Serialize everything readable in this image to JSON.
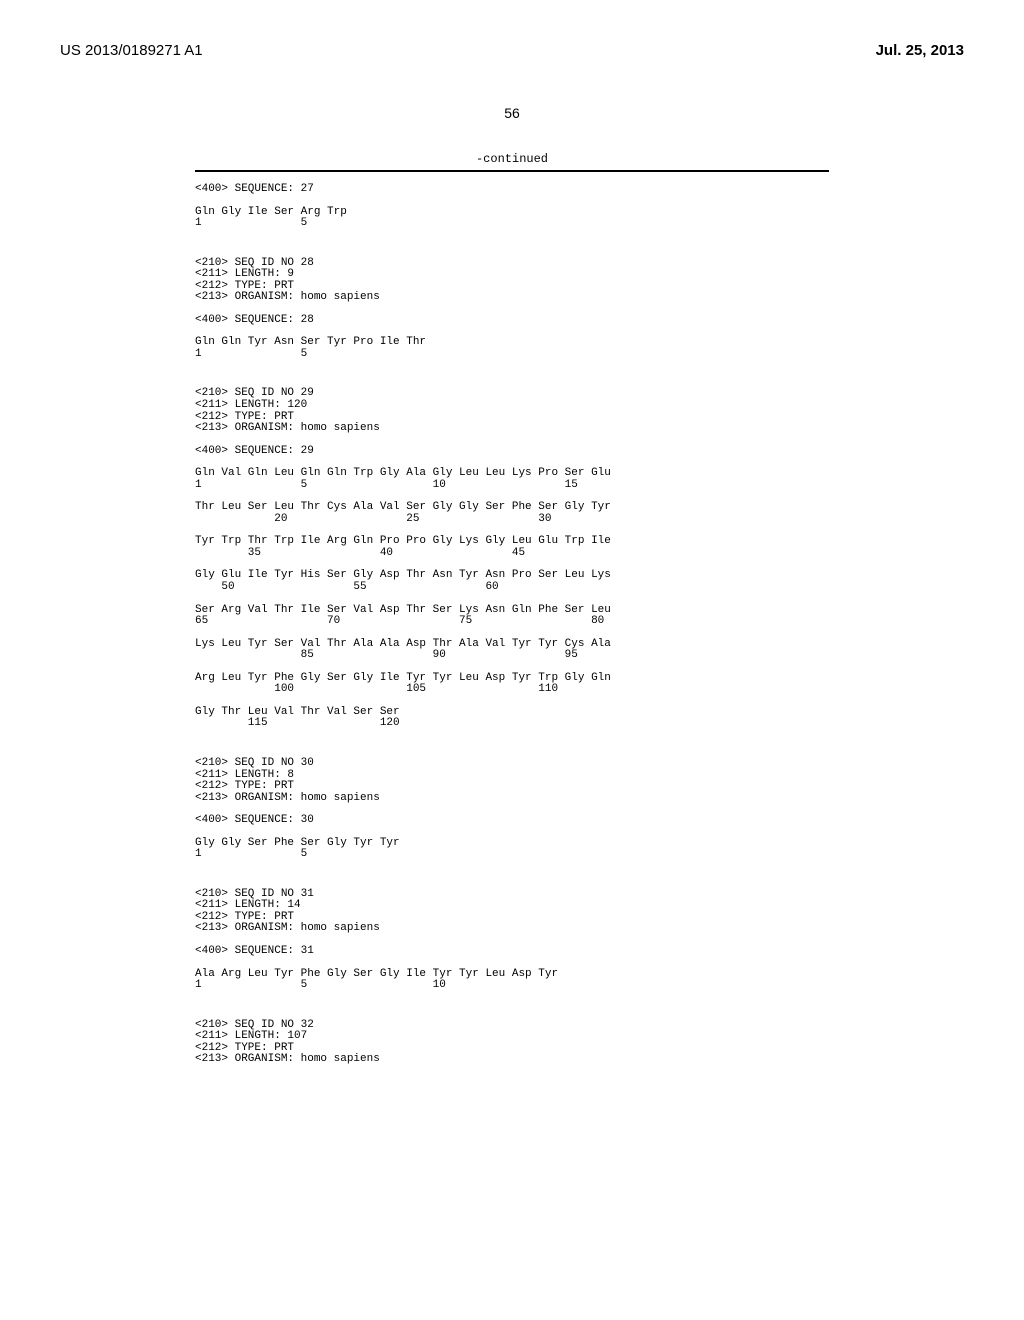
{
  "header": {
    "pub_no": "US 2013/0189271 A1",
    "pub_date": "Jul. 25, 2013"
  },
  "page_number": "56",
  "continued_label": "-continued",
  "lines": [
    {
      "txt": "<400> SEQUENCE: 27",
      "gap": "s"
    },
    {
      "txt": "Gln Gly Ile Ser Arg Trp"
    },
    {
      "txt": "1               5",
      "gap": "l"
    },
    {
      "txt": "<210> SEQ ID NO 28"
    },
    {
      "txt": "<211> LENGTH: 9"
    },
    {
      "txt": "<212> TYPE: PRT"
    },
    {
      "txt": "<213> ORGANISM: homo sapiens",
      "gap": "s"
    },
    {
      "txt": "<400> SEQUENCE: 28",
      "gap": "s"
    },
    {
      "txt": "Gln Gln Tyr Asn Ser Tyr Pro Ile Thr"
    },
    {
      "txt": "1               5",
      "gap": "l"
    },
    {
      "txt": "<210> SEQ ID NO 29"
    },
    {
      "txt": "<211> LENGTH: 120"
    },
    {
      "txt": "<212> TYPE: PRT"
    },
    {
      "txt": "<213> ORGANISM: homo sapiens",
      "gap": "s"
    },
    {
      "txt": "<400> SEQUENCE: 29",
      "gap": "s"
    },
    {
      "txt": "Gln Val Gln Leu Gln Gln Trp Gly Ala Gly Leu Leu Lys Pro Ser Glu"
    },
    {
      "txt": "1               5                   10                  15",
      "gap": "s"
    },
    {
      "txt": "Thr Leu Ser Leu Thr Cys Ala Val Ser Gly Gly Ser Phe Ser Gly Tyr"
    },
    {
      "txt": "            20                  25                  30",
      "gap": "s"
    },
    {
      "txt": "Tyr Trp Thr Trp Ile Arg Gln Pro Pro Gly Lys Gly Leu Glu Trp Ile"
    },
    {
      "txt": "        35                  40                  45",
      "gap": "s"
    },
    {
      "txt": "Gly Glu Ile Tyr His Ser Gly Asp Thr Asn Tyr Asn Pro Ser Leu Lys"
    },
    {
      "txt": "    50                  55                  60",
      "gap": "s"
    },
    {
      "txt": "Ser Arg Val Thr Ile Ser Val Asp Thr Ser Lys Asn Gln Phe Ser Leu"
    },
    {
      "txt": "65                  70                  75                  80",
      "gap": "s"
    },
    {
      "txt": "Lys Leu Tyr Ser Val Thr Ala Ala Asp Thr Ala Val Tyr Tyr Cys Ala"
    },
    {
      "txt": "                85                  90                  95",
      "gap": "s"
    },
    {
      "txt": "Arg Leu Tyr Phe Gly Ser Gly Ile Tyr Tyr Leu Asp Tyr Trp Gly Gln"
    },
    {
      "txt": "            100                 105                 110",
      "gap": "s"
    },
    {
      "txt": "Gly Thr Leu Val Thr Val Ser Ser"
    },
    {
      "txt": "        115                 120",
      "gap": "l"
    },
    {
      "txt": "<210> SEQ ID NO 30"
    },
    {
      "txt": "<211> LENGTH: 8"
    },
    {
      "txt": "<212> TYPE: PRT"
    },
    {
      "txt": "<213> ORGANISM: homo sapiens",
      "gap": "s"
    },
    {
      "txt": "<400> SEQUENCE: 30",
      "gap": "s"
    },
    {
      "txt": "Gly Gly Ser Phe Ser Gly Tyr Tyr"
    },
    {
      "txt": "1               5",
      "gap": "l"
    },
    {
      "txt": "<210> SEQ ID NO 31"
    },
    {
      "txt": "<211> LENGTH: 14"
    },
    {
      "txt": "<212> TYPE: PRT"
    },
    {
      "txt": "<213> ORGANISM: homo sapiens",
      "gap": "s"
    },
    {
      "txt": "<400> SEQUENCE: 31",
      "gap": "s"
    },
    {
      "txt": "Ala Arg Leu Tyr Phe Gly Ser Gly Ile Tyr Tyr Leu Asp Tyr"
    },
    {
      "txt": "1               5                   10",
      "gap": "l"
    },
    {
      "txt": "<210> SEQ ID NO 32"
    },
    {
      "txt": "<211> LENGTH: 107"
    },
    {
      "txt": "<212> TYPE: PRT"
    },
    {
      "txt": "<213> ORGANISM: homo sapiens"
    }
  ]
}
